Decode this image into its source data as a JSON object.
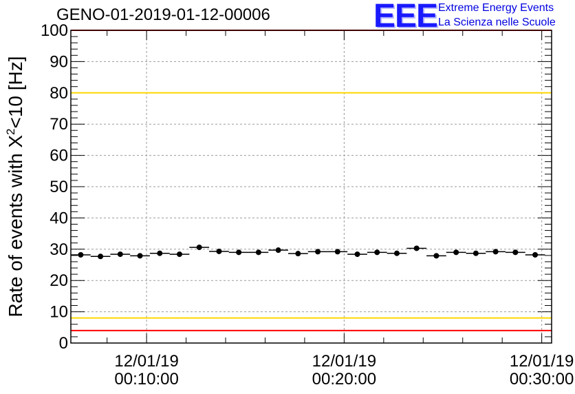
{
  "chart_data": {
    "type": "scatter",
    "title": "GENO-01-2019-01-12-00006",
    "ylabel": "Rate of events with X²<10 [Hz]",
    "ylabel_parts": {
      "main": "Rate of events with X",
      "sup": "2",
      "rest": "<10 [Hz]"
    },
    "ylim": [
      0,
      100
    ],
    "yticks": [
      "0",
      "10",
      "20",
      "30",
      "40",
      "50",
      "60",
      "70",
      "80",
      "90",
      "100"
    ],
    "xticks": [
      {
        "date": "12/01/19",
        "time": "00:10:00"
      },
      {
        "date": "12/01/19",
        "time": "00:20:00"
      },
      {
        "date": "12/01/19",
        "time": "00:30:00"
      }
    ],
    "grid": true,
    "reference_lines": [
      {
        "y": 100,
        "color": "#ff0000"
      },
      {
        "y": 80,
        "color": "#ffd700"
      },
      {
        "y": 8,
        "color": "#ffd700"
      },
      {
        "y": 4,
        "color": "#ff0000"
      }
    ],
    "points": [
      {
        "x": "00:06:40",
        "y": 28.2
      },
      {
        "x": "00:07:40",
        "y": 27.7
      },
      {
        "x": "00:08:40",
        "y": 28.4
      },
      {
        "x": "00:09:40",
        "y": 27.9
      },
      {
        "x": "00:10:40",
        "y": 28.7
      },
      {
        "x": "00:11:40",
        "y": 28.4
      },
      {
        "x": "00:12:40",
        "y": 30.6
      },
      {
        "x": "00:13:40",
        "y": 29.3
      },
      {
        "x": "00:14:40",
        "y": 29.0
      },
      {
        "x": "00:15:40",
        "y": 29.0
      },
      {
        "x": "00:16:40",
        "y": 29.7
      },
      {
        "x": "00:17:40",
        "y": 28.6
      },
      {
        "x": "00:18:40",
        "y": 29.2
      },
      {
        "x": "00:19:40",
        "y": 29.2
      },
      {
        "x": "00:20:40",
        "y": 28.4
      },
      {
        "x": "00:21:40",
        "y": 29.0
      },
      {
        "x": "00:22:40",
        "y": 28.7
      },
      {
        "x": "00:23:40",
        "y": 30.3
      },
      {
        "x": "00:24:40",
        "y": 27.9
      },
      {
        "x": "00:25:40",
        "y": 29.0
      },
      {
        "x": "00:26:40",
        "y": 28.7
      },
      {
        "x": "00:27:40",
        "y": 29.2
      },
      {
        "x": "00:28:40",
        "y": 29.0
      },
      {
        "x": "00:29:40",
        "y": 28.2
      }
    ],
    "marker_color": "#000000"
  },
  "logo": {
    "mark": "EEE",
    "line1": "Extreme Energy Events",
    "line2": "La Scienza nelle Scuole"
  }
}
